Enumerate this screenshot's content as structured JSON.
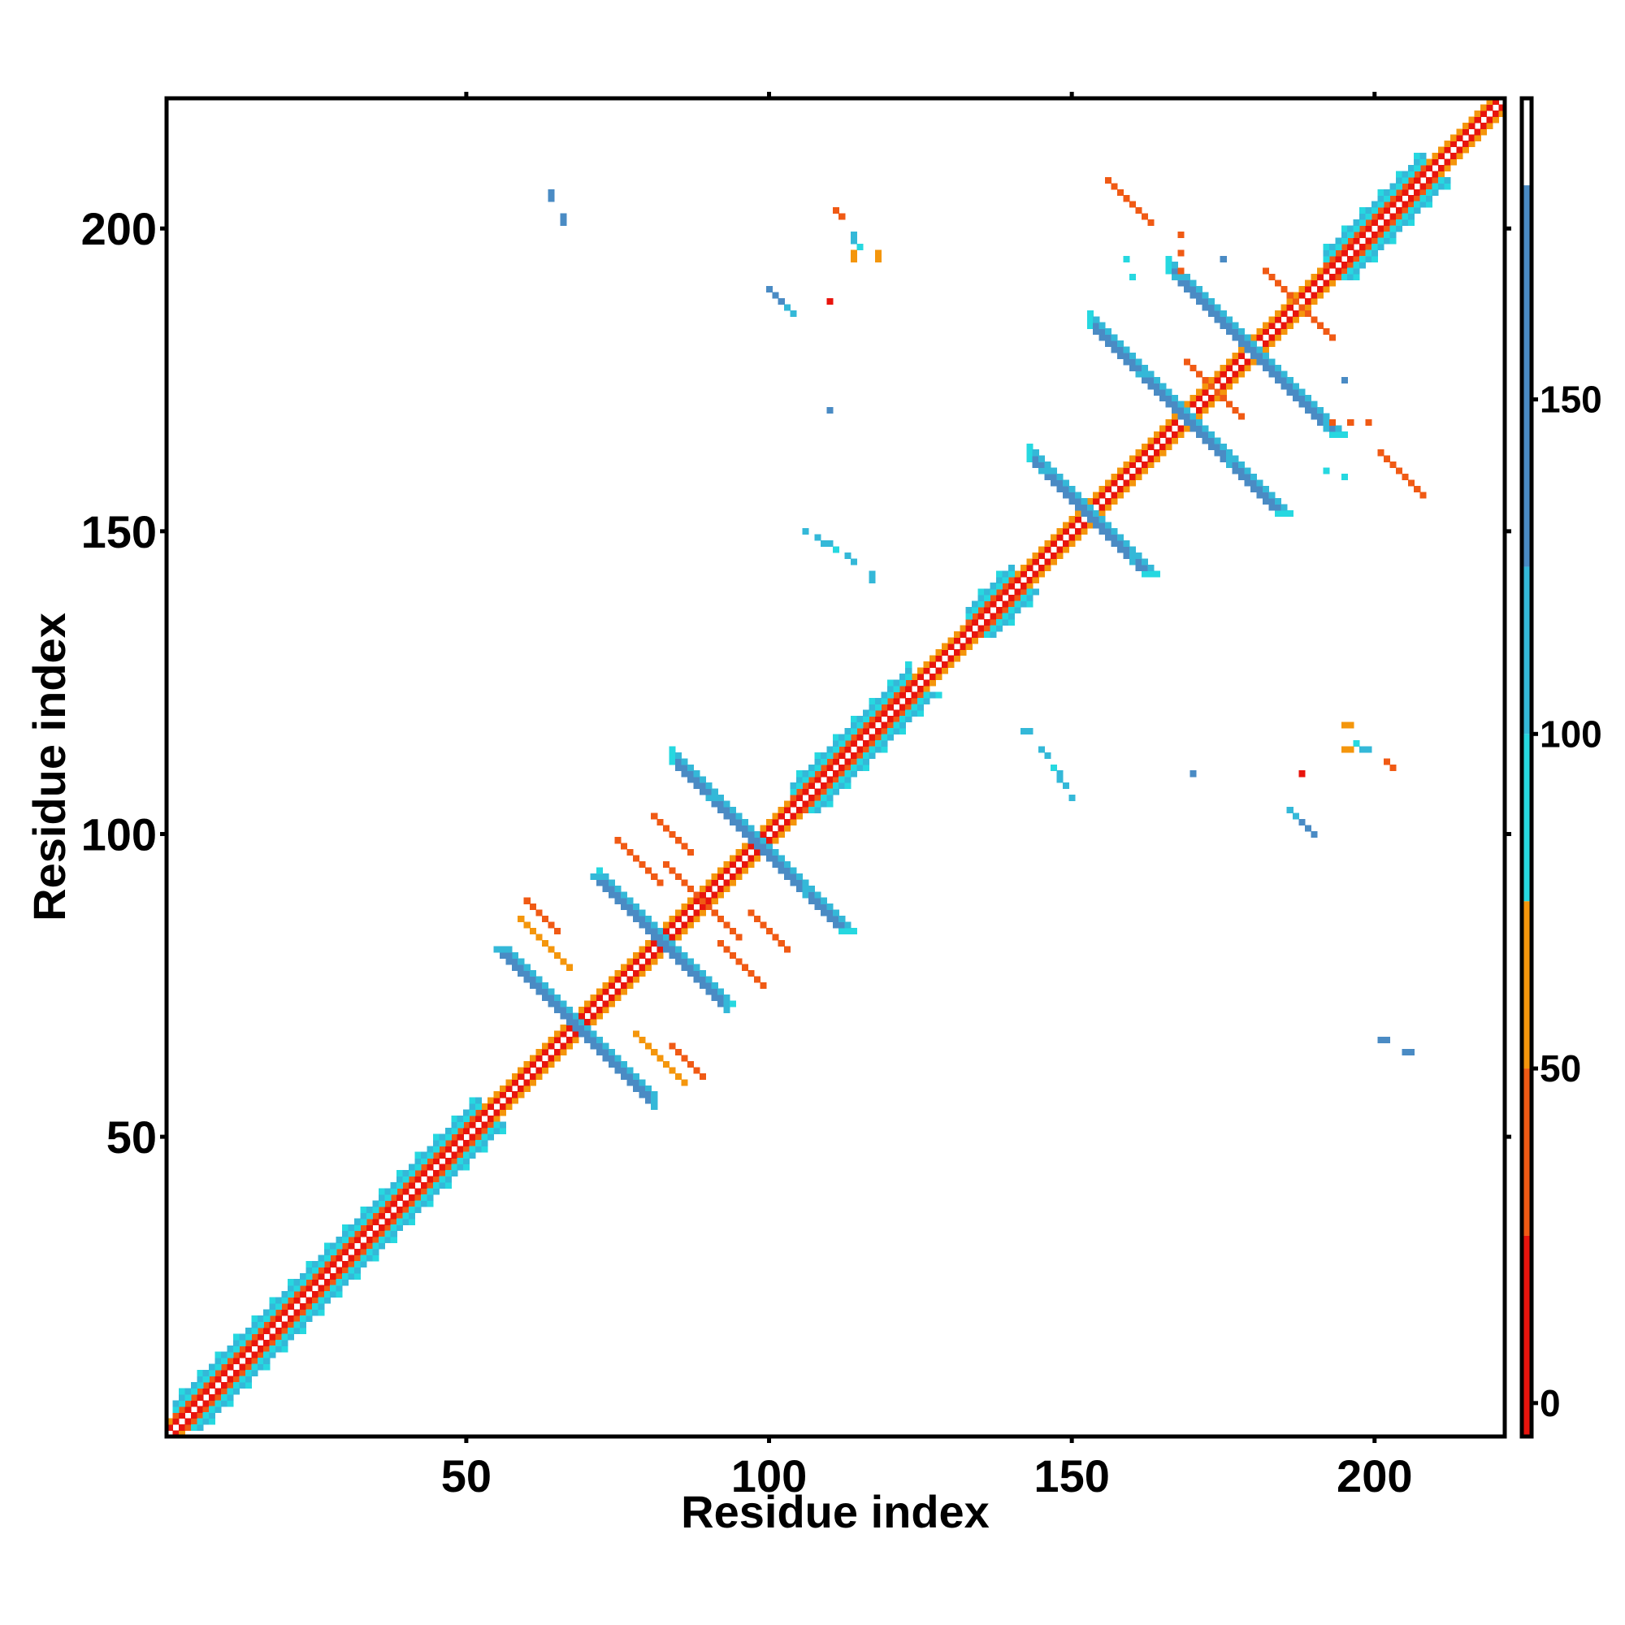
{
  "chart_data": {
    "type": "heatmap",
    "title": "",
    "xlabel": "Residue index",
    "ylabel": "Residue index",
    "xlim": [
      0.5,
      221.5
    ],
    "ylim": [
      0.5,
      221.5
    ],
    "x_ticks": [
      50,
      100,
      150,
      200
    ],
    "y_ticks": [
      50,
      100,
      150,
      200
    ],
    "colorbar": {
      "range": [
        -5,
        195
      ],
      "ticks": [
        0,
        50,
        100,
        150
      ],
      "bands": [
        {
          "from": -5,
          "to": 25,
          "color": "#e8140d"
        },
        {
          "from": 25,
          "to": 50,
          "color": "#f05a14"
        },
        {
          "from": 50,
          "to": 75,
          "color": "#f4960c"
        },
        {
          "from": 75,
          "to": 100,
          "color": "#26d8e0"
        },
        {
          "from": 100,
          "to": 125,
          "color": "#34b8d8"
        },
        {
          "from": 125,
          "to": 182,
          "color": "#4a8bc4"
        },
        {
          "from": 182,
          "to": 195,
          "color": "#ffffff"
        }
      ]
    },
    "segments": [
      {
        "kind": "diag",
        "from": 1,
        "to": 221,
        "band": "core"
      },
      {
        "kind": "helix",
        "from": 2,
        "to": 52
      },
      {
        "kind": "helix",
        "from": 104,
        "to": 123
      },
      {
        "kind": "helix",
        "from": 133,
        "to": 140
      },
      {
        "kind": "helix",
        "from": 192,
        "to": 208
      },
      {
        "kind": "anti",
        "c": 136,
        "t": [
          58,
          81
        ],
        "value": 150
      },
      {
        "kind": "anti",
        "c": 164,
        "t": [
          72,
          93
        ],
        "value": 150
      },
      {
        "kind": "anti",
        "c": 196,
        "t": [
          84,
          106
        ],
        "value": 150
      },
      {
        "kind": "anti",
        "c": 305,
        "t": [
          143,
          160
        ],
        "value": 150
      },
      {
        "kind": "anti",
        "c": 337,
        "t": [
          153,
          176
        ],
        "value": 150
      },
      {
        "kind": "anti",
        "c": 359,
        "t": [
          166,
          192
        ],
        "value": 150
      },
      {
        "kind": "anti",
        "c": 145,
        "t": [
          78,
          86
        ],
        "value": 60,
        "w": 1
      },
      {
        "kind": "anti",
        "c": 149,
        "t": [
          60,
          65
        ],
        "value": 40,
        "w": 1
      },
      {
        "kind": "anti",
        "c": 174,
        "t": [
          75,
          82
        ],
        "value": 40,
        "w": 1
      },
      {
        "kind": "anti",
        "c": 178,
        "t": [
          86,
          95
        ],
        "value": 40,
        "w": 1
      },
      {
        "kind": "anti",
        "c": 184,
        "t": [
          81,
          87
        ],
        "value": 40,
        "w": 1
      },
      {
        "kind": "anti",
        "c": 347,
        "t": [
          170,
          178
        ],
        "value": 40,
        "w": 1
      },
      {
        "kind": "anti",
        "c": 364,
        "t": [
          156,
          163
        ],
        "value": 40,
        "w": 1
      },
      {
        "kind": "anti",
        "c": 375,
        "t": [
          182,
          190
        ],
        "value": 40,
        "w": 1
      }
    ],
    "spots": [
      {
        "x": 64,
        "y": 206,
        "value": 150
      },
      {
        "x": 66,
        "y": 202,
        "value": 150
      },
      {
        "x": 100,
        "y": 190,
        "value": 110
      },
      {
        "x": 101,
        "y": 189,
        "value": 110
      },
      {
        "x": 102,
        "y": 188,
        "value": 150
      },
      {
        "x": 103,
        "y": 187,
        "value": 150
      },
      {
        "x": 104,
        "y": 186,
        "value": 150
      },
      {
        "x": 110,
        "y": 188,
        "value": 10
      },
      {
        "x": 111,
        "y": 203,
        "value": 40
      },
      {
        "x": 114,
        "y": 199,
        "value": 40
      },
      {
        "x": 115,
        "y": 197,
        "value": 90
      },
      {
        "x": 114,
        "y": 196,
        "value": 60
      },
      {
        "x": 118,
        "y": 196,
        "value": 60
      },
      {
        "x": 110,
        "y": 170,
        "value": 150
      },
      {
        "x": 106,
        "y": 150,
        "value": 110
      },
      {
        "x": 109,
        "y": 148,
        "value": 110
      },
      {
        "x": 110,
        "y": 148,
        "value": 110
      },
      {
        "x": 113,
        "y": 146,
        "value": 110
      },
      {
        "x": 117,
        "y": 143,
        "value": 110
      },
      {
        "x": 142,
        "y": 117,
        "value": 110
      },
      {
        "x": 145,
        "y": 114,
        "value": 110
      },
      {
        "x": 147,
        "y": 111,
        "value": 90
      },
      {
        "x": 149,
        "y": 108,
        "value": 110
      },
      {
        "x": 170,
        "y": 110,
        "value": 150
      },
      {
        "x": 175,
        "y": 195,
        "value": 150
      },
      {
        "x": 168,
        "y": 199,
        "value": 40
      },
      {
        "x": 186,
        "y": 104,
        "value": 110
      },
      {
        "x": 187,
        "y": 103,
        "value": 110
      },
      {
        "x": 188,
        "y": 102,
        "value": 150
      },
      {
        "x": 189,
        "y": 101,
        "value": 150
      },
      {
        "x": 190,
        "y": 100,
        "value": 150
      },
      {
        "x": 188,
        "y": 110,
        "value": 10
      },
      {
        "x": 195,
        "y": 118,
        "value": 60
      },
      {
        "x": 196,
        "y": 118,
        "value": 60
      },
      {
        "x": 195,
        "y": 114,
        "value": 60
      },
      {
        "x": 198,
        "y": 114,
        "value": 110
      },
      {
        "x": 199,
        "y": 114,
        "value": 110
      },
      {
        "x": 202,
        "y": 112,
        "value": 40
      },
      {
        "x": 193,
        "y": 168,
        "value": 40
      },
      {
        "x": 196,
        "y": 168,
        "value": 40
      },
      {
        "x": 192,
        "y": 160,
        "value": 90
      },
      {
        "x": 195,
        "y": 159,
        "value": 90
      },
      {
        "x": 201,
        "y": 66,
        "value": 150
      },
      {
        "x": 205,
        "y": 64,
        "value": 150
      }
    ]
  }
}
